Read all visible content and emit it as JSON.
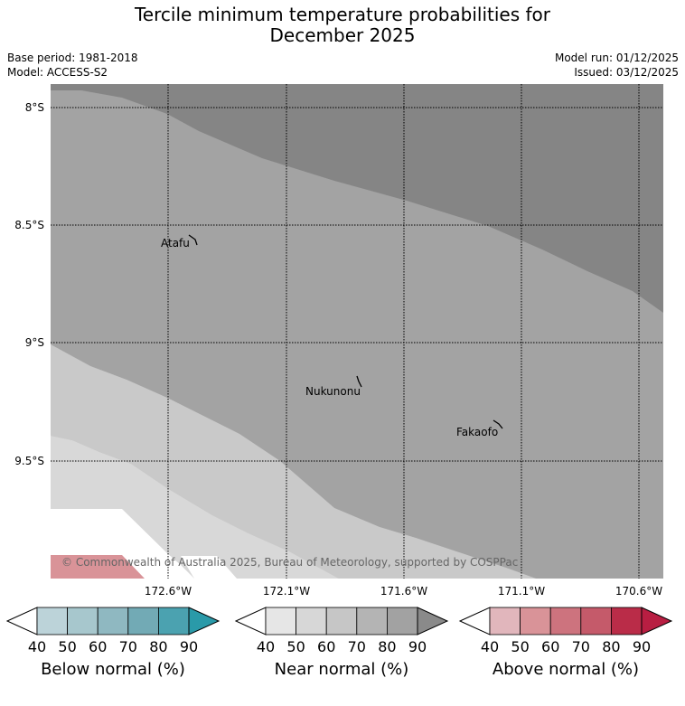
{
  "title_line1": "Tercile minimum temperature probabilities for",
  "title_line2": "December 2025",
  "base_period": "Base period: 1981-2018",
  "model": "Model: ACCESS-S2",
  "model_run": "Model run: 01/12/2025",
  "issued": "Issued: 03/12/2025",
  "copyright": "© Commonwealth of Australia 2025, Bureau of Meteorology, supported by COSPPac",
  "lat_labels": [
    "8°S",
    "8.5°S",
    "9°S",
    "9.5°S"
  ],
  "lon_labels": [
    "172.6°W",
    "172.1°W",
    "171.6°W",
    "171.1°W",
    "170.6°W"
  ],
  "places": [
    {
      "name": "Atafu"
    },
    {
      "name": "Nukunonu"
    },
    {
      "name": "Fakaofo"
    }
  ],
  "colorbars": [
    {
      "label": "Below normal (%)",
      "ticks": [
        "40",
        "50",
        "60",
        "70",
        "80",
        "90"
      ],
      "colors": [
        "#bcd3d9",
        "#a7c7cd",
        "#8fb8c1",
        "#72aab5",
        "#4ba2b0",
        "#2a9aa9"
      ]
    },
    {
      "label": "Near normal (%)",
      "ticks": [
        "40",
        "50",
        "60",
        "70",
        "80",
        "90"
      ],
      "colors": [
        "#e6e6e6",
        "#d7d7d7",
        "#c6c6c6",
        "#b4b4b4",
        "#a2a2a2",
        "#8a8a8a"
      ]
    },
    {
      "label": "Above normal (%)",
      "ticks": [
        "40",
        "50",
        "60",
        "70",
        "80",
        "90"
      ],
      "colors": [
        "#e1b6bc",
        "#d99398",
        "#cd737e",
        "#c55a6a",
        "#ba2c48",
        "#b81e42"
      ]
    }
  ]
}
